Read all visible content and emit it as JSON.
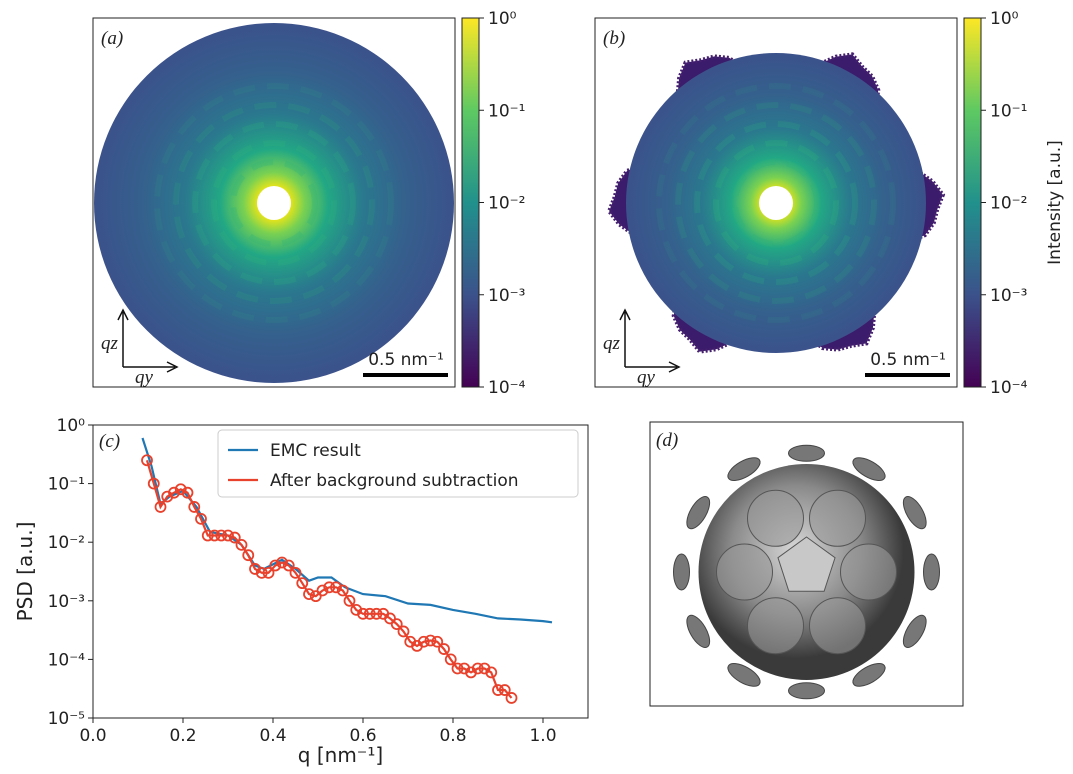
{
  "chart_data": [
    {
      "type": "image",
      "title": "(a)",
      "shape": "disk",
      "clim": [
        0.0001,
        1
      ],
      "log": true,
      "cticks": [
        {
          "value": 1,
          "label": "10⁰"
        },
        {
          "value": 0.1,
          "label": "10⁻¹"
        },
        {
          "value": 0.01,
          "label": "10⁻²"
        },
        {
          "value": 0.001,
          "label": "10⁻³"
        },
        {
          "value": 0.0001,
          "label": "10⁻⁴"
        }
      ],
      "axis_labels": [
        "qz",
        "qy"
      ],
      "scalebar": "0.5 nm⁻¹"
    },
    {
      "type": "image",
      "title": "(b)",
      "shape": "hexagon",
      "clim": [
        0.0001,
        1
      ],
      "log": true,
      "colorbar_label": "Intensity  [a.u.]",
      "cticks": [
        {
          "value": 1,
          "label": "10⁰"
        },
        {
          "value": 0.1,
          "label": "10⁻¹"
        },
        {
          "value": 0.01,
          "label": "10⁻²"
        },
        {
          "value": 0.001,
          "label": "10⁻³"
        },
        {
          "value": 0.0001,
          "label": "10⁻⁴"
        }
      ],
      "axis_labels": [
        "qz",
        "qy"
      ],
      "scalebar": "0.5 nm⁻¹"
    },
    {
      "type": "line",
      "title": "(c)",
      "xlabel": "q  [nm⁻¹]",
      "ylabel": "PSD  [a.u.]",
      "log_y": true,
      "legend": "upper right",
      "xlim": [
        0,
        1.1
      ],
      "xticks": [
        {
          "value": 0,
          "label": "0.0"
        },
        0.2,
        0.4,
        0.6,
        0.8,
        {
          "value": 1,
          "label": "1.0"
        }
      ],
      "ylim": [
        1e-05,
        1
      ],
      "yticks": [
        {
          "value": 1e-05,
          "label": "10⁻⁵"
        },
        {
          "value": 0.0001,
          "label": "10⁻⁴"
        },
        {
          "value": 0.001,
          "label": "10⁻³"
        },
        {
          "value": 0.01,
          "label": "10⁻²"
        },
        {
          "value": 0.1,
          "label": "10⁻¹"
        },
        {
          "value": 1,
          "label": "10⁰"
        }
      ],
      "series": [
        {
          "name": "EMC result",
          "color": "#1f77b4",
          "markers": false,
          "x": [
            0.11,
            0.13,
            0.15,
            0.17,
            0.2,
            0.23,
            0.26,
            0.3,
            0.33,
            0.36,
            0.38,
            0.42,
            0.45,
            0.48,
            0.5,
            0.53,
            0.56,
            0.6,
            0.65,
            0.7,
            0.75,
            0.8,
            0.85,
            0.9,
            0.95,
            1.0,
            1.02
          ],
          "values": [
            0.6,
            0.2,
            0.045,
            0.06,
            0.075,
            0.04,
            0.015,
            0.013,
            0.009,
            0.004,
            0.0035,
            0.005,
            0.0035,
            0.0022,
            0.0025,
            0.0025,
            0.0017,
            0.0013,
            0.0012,
            0.0009,
            0.00085,
            0.0007,
            0.0006,
            0.0005,
            0.00048,
            0.00045,
            0.00043
          ]
        },
        {
          "name": "After background subtraction",
          "color": "#e8412c",
          "markers": true,
          "x": [
            0.12,
            0.135,
            0.15,
            0.165,
            0.18,
            0.195,
            0.21,
            0.225,
            0.24,
            0.255,
            0.27,
            0.285,
            0.3,
            0.315,
            0.33,
            0.345,
            0.36,
            0.375,
            0.39,
            0.405,
            0.42,
            0.435,
            0.45,
            0.465,
            0.48,
            0.495,
            0.51,
            0.525,
            0.54,
            0.555,
            0.57,
            0.585,
            0.6,
            0.615,
            0.63,
            0.645,
            0.66,
            0.675,
            0.69,
            0.705,
            0.72,
            0.735,
            0.75,
            0.765,
            0.78,
            0.795,
            0.81,
            0.825,
            0.84,
            0.855,
            0.87,
            0.885,
            0.9,
            0.915,
            0.93
          ],
          "values": [
            0.25,
            0.1,
            0.04,
            0.06,
            0.07,
            0.08,
            0.07,
            0.04,
            0.025,
            0.013,
            0.013,
            0.013,
            0.013,
            0.012,
            0.009,
            0.006,
            0.0035,
            0.003,
            0.003,
            0.004,
            0.0045,
            0.004,
            0.003,
            0.002,
            0.0013,
            0.0012,
            0.0015,
            0.0017,
            0.0017,
            0.0015,
            0.001,
            0.0007,
            0.0006,
            0.0006,
            0.0006,
            0.0006,
            0.0005,
            0.0004,
            0.0003,
            0.0002,
            0.00017,
            0.0002,
            0.00021,
            0.0002,
            0.00015,
            0.0001,
            7e-05,
            7e-05,
            6e-05,
            7e-05,
            7e-05,
            6e-05,
            3e-05,
            3e-05,
            2.2e-05
          ]
        }
      ]
    },
    {
      "type": "render",
      "title": "(d)"
    }
  ]
}
